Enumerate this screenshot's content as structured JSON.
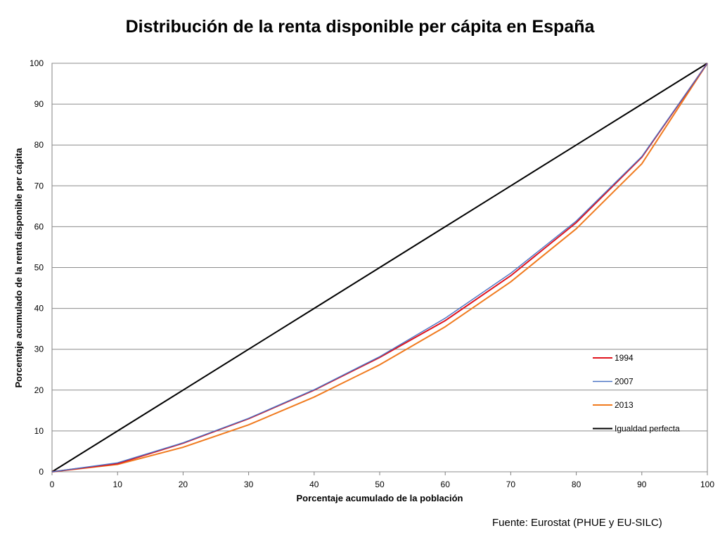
{
  "chart_data": {
    "type": "line",
    "title": "Distribución de la renta disponible per cápita en España",
    "xlabel": "Porcentaje acumulado de la población",
    "ylabel": "Porcentaje acumulado de la renta disponible per cápita",
    "xlim": [
      0,
      100
    ],
    "ylim": [
      0,
      100
    ],
    "x_ticks": [
      0,
      10,
      20,
      30,
      40,
      50,
      60,
      70,
      80,
      90,
      100
    ],
    "y_ticks": [
      0,
      10,
      20,
      30,
      40,
      50,
      60,
      70,
      80,
      90,
      100
    ],
    "grid": "horizontal",
    "legend_position": "right",
    "x": [
      0,
      10,
      20,
      30,
      40,
      50,
      60,
      70,
      80,
      90,
      100
    ],
    "series": [
      {
        "name": "1994",
        "color": "#e0141e",
        "values": [
          0,
          2,
          7,
          13,
          20,
          28,
          37,
          48,
          61,
          77,
          100
        ]
      },
      {
        "name": "2007",
        "color": "#4a72c4",
        "values": [
          0,
          2.2,
          7.1,
          13.1,
          20.1,
          28.2,
          37.6,
          48.6,
          61.4,
          77.2,
          100
        ]
      },
      {
        "name": "2013",
        "color": "#f07a1e",
        "values": [
          0,
          1.8,
          6,
          11.5,
          18.3,
          26.2,
          35.5,
          46.5,
          59.5,
          75.4,
          100
        ]
      },
      {
        "name": "Igualdad perfecta",
        "color": "#000000",
        "values": [
          0,
          10,
          20,
          30,
          40,
          50,
          60,
          70,
          80,
          90,
          100
        ]
      }
    ],
    "source": "Fuente: Eurostat (PHUE y EU-SILC)"
  }
}
